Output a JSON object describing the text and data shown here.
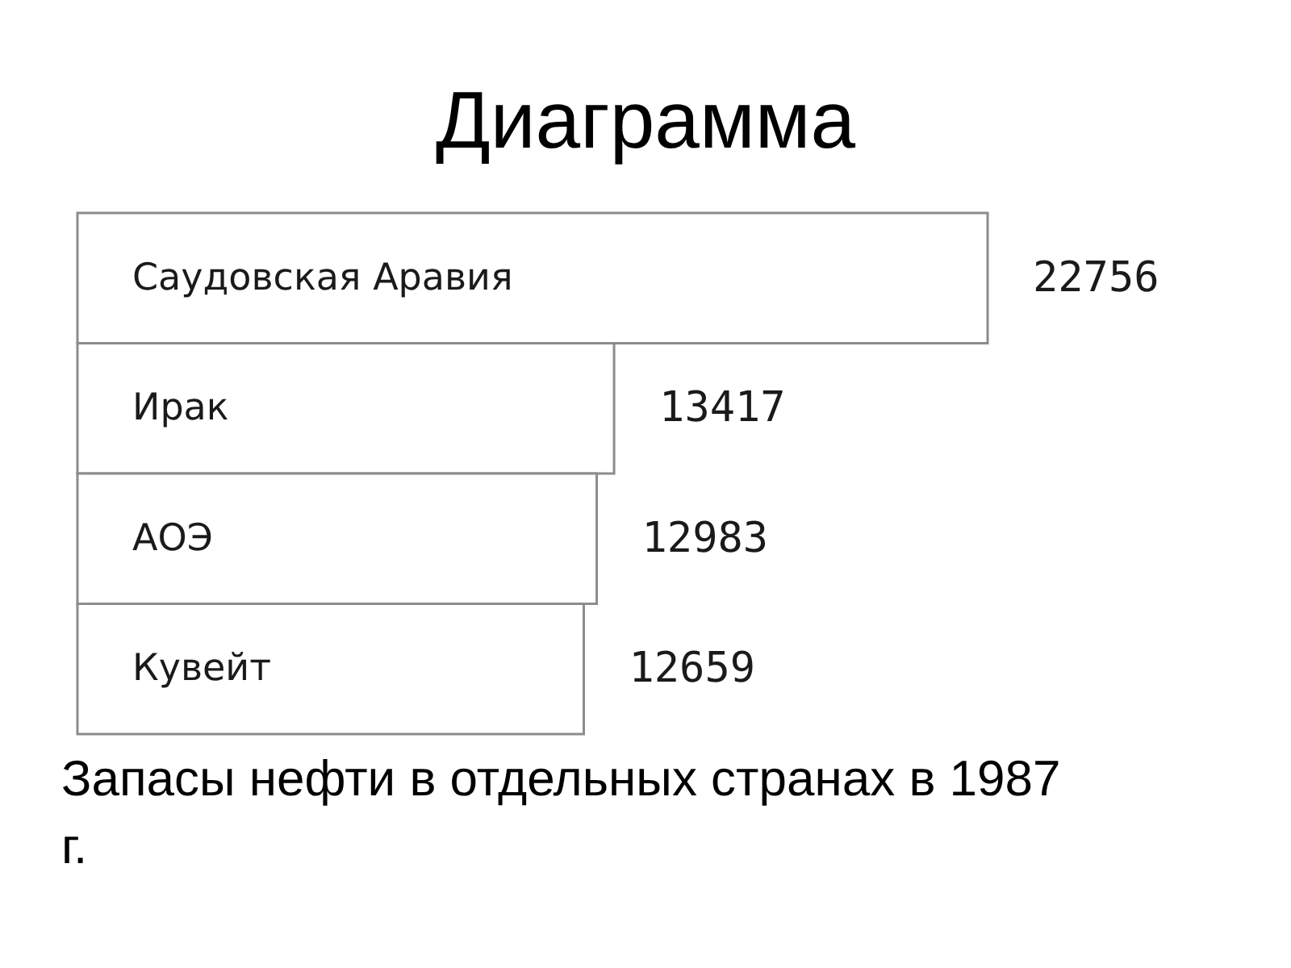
{
  "chart_data": {
    "type": "bar",
    "orientation": "horizontal",
    "title": "Диаграмма",
    "categories": [
      "Саудовская Аравия",
      "Ирак",
      "АОЭ",
      "Кувейт"
    ],
    "values": [
      22756,
      13417,
      12983,
      12659
    ],
    "color": "#ffffff",
    "data_labels": true,
    "annotations": [
      "Запасы нефти в отдельных странах в 1987 г."
    ]
  }
}
